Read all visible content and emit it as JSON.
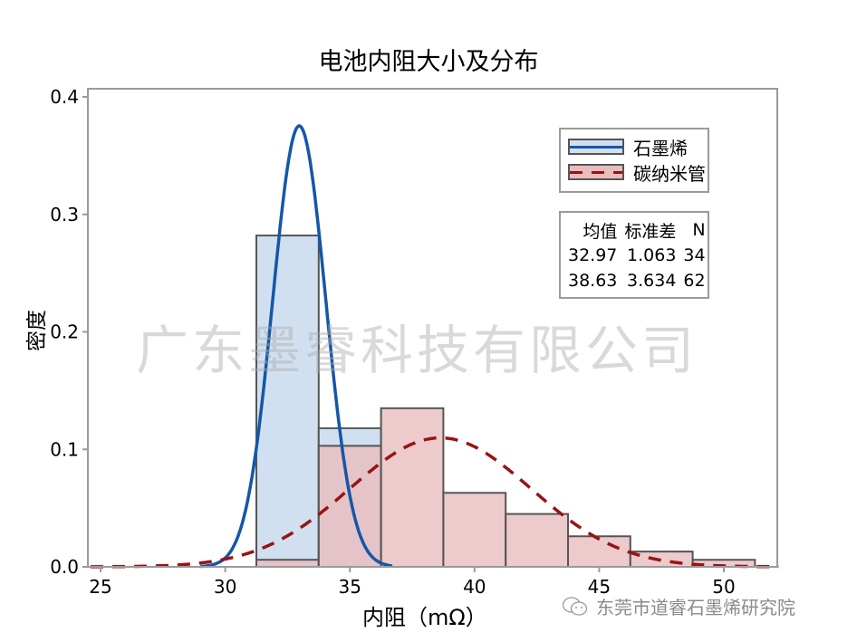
{
  "title": "电池内阻大小及分布",
  "watermark": "广东墨睿科技有限公司",
  "credit": {
    "icon": "wechat-icon",
    "text": "东莞市道睿石墨烯研究院"
  },
  "legend": {
    "items": [
      {
        "label": "石墨烯",
        "line_color": "#1457a8",
        "fill": "#d1e0f0",
        "style": "solid"
      },
      {
        "label": "碳纳米管",
        "line_color": "#951515",
        "fill": "#e8bdbe",
        "style": "dashed"
      }
    ]
  },
  "stats_table": {
    "headers": [
      "均值",
      "标准差",
      "N"
    ],
    "rows": [
      [
        "32.97",
        "1.063",
        "34"
      ],
      [
        "38.63",
        "3.634",
        "62"
      ]
    ]
  },
  "chart_data": {
    "type": "bar",
    "subtype": "histogram_with_normal_fit",
    "title": "电池内阻大小及分布",
    "xlabel": "内阻（mΩ）",
    "ylabel": "密度",
    "xlim": [
      24.5,
      52.3
    ],
    "ylim": [
      0,
      0.407
    ],
    "x_ticks": [
      25,
      30,
      35,
      40,
      45,
      50
    ],
    "y_ticks": [
      0.0,
      0.1,
      0.2,
      0.3,
      0.4
    ],
    "y_tick_labels": [
      "0.0",
      "0.1",
      "0.2",
      "0.3",
      "0.4"
    ],
    "grid": false,
    "legend_position": "upper right",
    "bin_edges": [
      31.25,
      33.75,
      36.25,
      38.75,
      41.25,
      43.75,
      46.25,
      48.75,
      51.25
    ],
    "series": [
      {
        "name": "石墨烯",
        "histogram_density": [
          0.282,
          0.118,
          0,
          0,
          0,
          0,
          0,
          0
        ],
        "fit": {
          "dist": "normal",
          "mean": 32.97,
          "std": 1.063,
          "n": 34
        },
        "color": "#1457a8",
        "fill": "#d1e0f0"
      },
      {
        "name": "碳纳米管",
        "histogram_density": [
          0.006,
          0.103,
          0.135,
          0.063,
          0.045,
          0.026,
          0.013,
          0.006
        ],
        "fit": {
          "dist": "normal",
          "mean": 38.63,
          "std": 3.634,
          "n": 62
        },
        "color": "#951515",
        "fill": "#e8bdbe"
      }
    ]
  }
}
